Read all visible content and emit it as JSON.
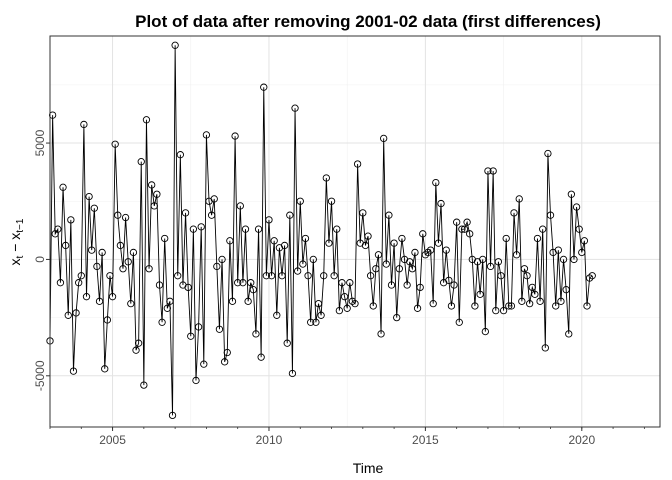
{
  "chart_data": {
    "type": "line",
    "title": "Plot of data after removing 2001-02 data (first differences)",
    "xlabel": "Time",
    "ylabel": "x_t − x_{t−1}",
    "ylabel_parts": {
      "base1": "x",
      "sub1": "t",
      "mid": " − x",
      "sub2": "t−1"
    },
    "xlim": [
      2003.0,
      2022.5
    ],
    "ylim": [
      -7200,
      9600
    ],
    "x_ticks": [
      2005,
      2010,
      2015,
      2020
    ],
    "y_ticks": [
      -5000,
      0,
      5000
    ],
    "x_tick_labels": [
      "2005",
      "2010",
      "2015",
      "2020"
    ],
    "y_tick_labels": [
      "-5000",
      "0",
      "5000"
    ],
    "grid": true,
    "markers": "open-circle",
    "series": [
      {
        "start_year": 2003.0,
        "step": 0.0833333,
        "values": [
          -3500,
          6200,
          1100,
          1300,
          -1000,
          3100,
          600,
          -2400,
          1700,
          -4800,
          -2300,
          -1000,
          -700,
          5800,
          -1600,
          2700,
          400,
          2200,
          -300,
          -1800,
          300,
          -4700,
          -2600,
          -700,
          -1600,
          4950,
          1900,
          600,
          -400,
          1800,
          -100,
          -1900,
          300,
          -3900,
          -3600,
          4200,
          -5400,
          6000,
          -400,
          3200,
          2300,
          2800,
          -1100,
          -2700,
          900,
          -2100,
          -1800,
          -6700,
          9200,
          -700,
          4500,
          -1100,
          2000,
          -1200,
          -3300,
          1300,
          -5200,
          -2900,
          1400,
          -4500,
          5350,
          2500,
          1900,
          2600,
          -300,
          -3000,
          0,
          -4400,
          -4000,
          800,
          -1800,
          5300,
          -1000,
          2300,
          -1000,
          1300,
          -1800,
          -1000,
          -1300,
          -3200,
          1300,
          -4200,
          7400,
          -700,
          1700,
          -700,
          800,
          -2400,
          500,
          -700,
          600,
          -3600,
          1900,
          -4900,
          6500,
          -500,
          2500,
          -200,
          900,
          -700,
          -2700,
          0,
          -2700,
          -1900,
          -2400,
          -700,
          3500,
          700,
          2500,
          -700,
          1300,
          -2200,
          -1000,
          -1600,
          -2100,
          -1000,
          -1800,
          -1900,
          4100,
          700,
          2000,
          600,
          1000,
          -700,
          -2000,
          -400,
          200,
          -3200,
          5200,
          -200,
          1900,
          -1100,
          700,
          -2500,
          -400,
          900,
          0,
          -1100,
          -100,
          -400,
          300,
          -2100,
          -1200,
          1100,
          200,
          300,
          400,
          -1900,
          3300,
          700,
          2400,
          -1000,
          400,
          -900,
          -2000,
          -1100,
          1600,
          -2700,
          1300,
          1300,
          1600,
          1100,
          0,
          -2000,
          -100,
          -1500,
          0,
          -3100,
          3800,
          -300,
          3800,
          -2200,
          -100,
          -700,
          -2200,
          900,
          -2000,
          -2000,
          2000,
          200,
          2600,
          -1800,
          -400,
          -700,
          -1900,
          -1200,
          -1500,
          900,
          -1800,
          1300,
          -3800,
          4550,
          1900,
          300,
          -2000,
          400,
          -1800,
          0,
          -1300,
          -3200,
          2800,
          0,
          2250,
          1300,
          300,
          800,
          -2000,
          -800,
          -700
        ]
      }
    ]
  }
}
